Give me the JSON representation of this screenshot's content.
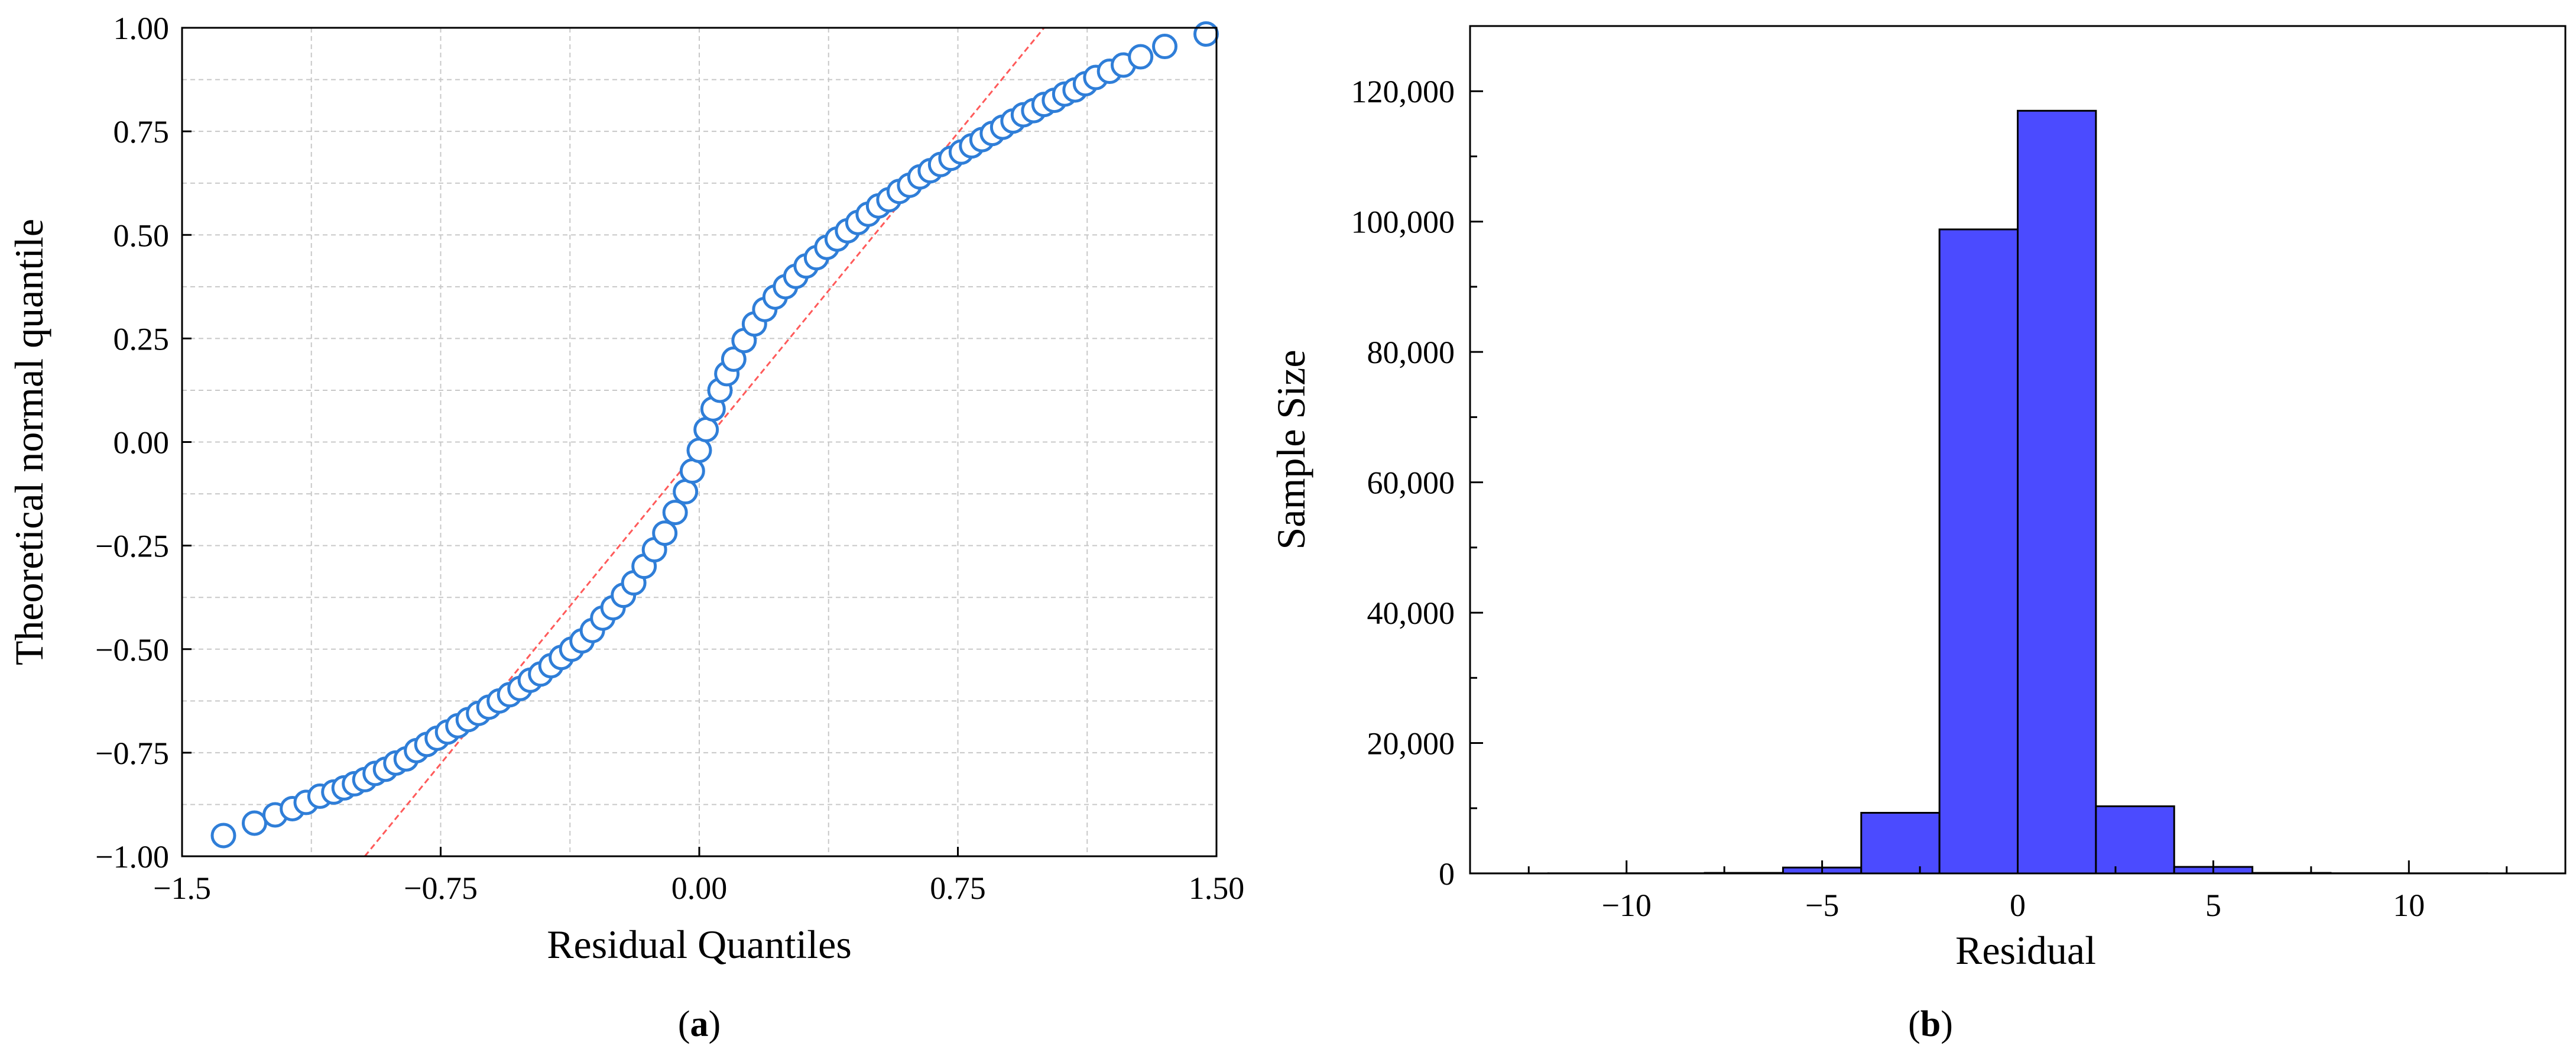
{
  "chart_data": [
    {
      "type": "scatter",
      "panel": "(a)",
      "panel_letter": "a",
      "xlabel": "Residual Quantiles",
      "ylabel": "Theoretical normal quantile",
      "xlim": [
        -1.5,
        1.5
      ],
      "ylim": [
        -1.0,
        1.0
      ],
      "xticks": [
        -1.5,
        -0.75,
        0.0,
        0.75,
        1.5
      ],
      "xtick_labels": [
        "−1.5",
        "−0.75",
        "0.00",
        "0.75",
        "1.50"
      ],
      "yticks": [
        -1.0,
        -0.75,
        -0.5,
        -0.25,
        0.0,
        0.25,
        0.5,
        0.75,
        1.0
      ],
      "ytick_labels": [
        "−1.00",
        "−0.75",
        "−0.50",
        "−0.25",
        "0.00",
        "0.25",
        "0.50",
        "0.75",
        "1.00"
      ],
      "grid": true,
      "marker_color": "#2f7ed8",
      "reference_line_color": "#ff5a5a",
      "reference_line": {
        "x": [
          -0.97,
          1.0
        ],
        "y": [
          -1.0,
          1.0
        ]
      },
      "points": [
        [
          -1.38,
          -0.95
        ],
        [
          -1.29,
          -0.92
        ],
        [
          -1.23,
          -0.9
        ],
        [
          -1.18,
          -0.885
        ],
        [
          -1.14,
          -0.87
        ],
        [
          -1.1,
          -0.855
        ],
        [
          -1.06,
          -0.845
        ],
        [
          -1.03,
          -0.835
        ],
        [
          -1.0,
          -0.825
        ],
        [
          -0.97,
          -0.815
        ],
        [
          -0.94,
          -0.8
        ],
        [
          -0.91,
          -0.79
        ],
        [
          -0.88,
          -0.775
        ],
        [
          -0.85,
          -0.765
        ],
        [
          -0.82,
          -0.745
        ],
        [
          -0.79,
          -0.73
        ],
        [
          -0.76,
          -0.715
        ],
        [
          -0.73,
          -0.7
        ],
        [
          -0.7,
          -0.685
        ],
        [
          -0.67,
          -0.67
        ],
        [
          -0.64,
          -0.655
        ],
        [
          -0.61,
          -0.64
        ],
        [
          -0.58,
          -0.625
        ],
        [
          -0.55,
          -0.61
        ],
        [
          -0.52,
          -0.595
        ],
        [
          -0.49,
          -0.575
        ],
        [
          -0.46,
          -0.56
        ],
        [
          -0.43,
          -0.54
        ],
        [
          -0.4,
          -0.52
        ],
        [
          -0.37,
          -0.5
        ],
        [
          -0.34,
          -0.48
        ],
        [
          -0.31,
          -0.455
        ],
        [
          -0.28,
          -0.425
        ],
        [
          -0.25,
          -0.4
        ],
        [
          -0.22,
          -0.37
        ],
        [
          -0.19,
          -0.34
        ],
        [
          -0.16,
          -0.3
        ],
        [
          -0.13,
          -0.26
        ],
        [
          -0.1,
          -0.22
        ],
        [
          -0.07,
          -0.17
        ],
        [
          -0.04,
          -0.12
        ],
        [
          -0.02,
          -0.07
        ],
        [
          0.0,
          -0.02
        ],
        [
          0.02,
          0.03
        ],
        [
          0.04,
          0.08
        ],
        [
          0.06,
          0.125
        ],
        [
          0.08,
          0.165
        ],
        [
          0.1,
          0.2
        ],
        [
          0.13,
          0.245
        ],
        [
          0.16,
          0.285
        ],
        [
          0.19,
          0.32
        ],
        [
          0.22,
          0.35
        ],
        [
          0.25,
          0.375
        ],
        [
          0.28,
          0.4
        ],
        [
          0.31,
          0.425
        ],
        [
          0.34,
          0.445
        ],
        [
          0.37,
          0.47
        ],
        [
          0.4,
          0.49
        ],
        [
          0.43,
          0.51
        ],
        [
          0.46,
          0.53
        ],
        [
          0.49,
          0.55
        ],
        [
          0.52,
          0.57
        ],
        [
          0.55,
          0.585
        ],
        [
          0.58,
          0.605
        ],
        [
          0.61,
          0.62
        ],
        [
          0.64,
          0.64
        ],
        [
          0.67,
          0.655
        ],
        [
          0.7,
          0.67
        ],
        [
          0.73,
          0.685
        ],
        [
          0.76,
          0.7
        ],
        [
          0.79,
          0.715
        ],
        [
          0.82,
          0.73
        ],
        [
          0.85,
          0.745
        ],
        [
          0.88,
          0.76
        ],
        [
          0.91,
          0.775
        ],
        [
          0.94,
          0.79
        ],
        [
          0.97,
          0.8
        ],
        [
          1.0,
          0.815
        ],
        [
          1.03,
          0.825
        ],
        [
          1.06,
          0.84
        ],
        [
          1.09,
          0.85
        ],
        [
          1.12,
          0.865
        ],
        [
          1.15,
          0.88
        ],
        [
          1.19,
          0.895
        ],
        [
          1.23,
          0.91
        ],
        [
          1.28,
          0.93
        ],
        [
          1.35,
          0.955
        ],
        [
          1.47,
          0.985
        ]
      ]
    },
    {
      "type": "bar",
      "panel": "(b)",
      "panel_letter": "b",
      "xlabel": "Residual",
      "ylabel": "Sample Size",
      "xlim": [
        -14,
        14
      ],
      "ylim": [
        0,
        130000
      ],
      "xticks": [
        -10,
        -5,
        0,
        5,
        10
      ],
      "xtick_labels": [
        "−10",
        "−5",
        "0",
        "5",
        "10"
      ],
      "xminor": [
        -12.5,
        -7.5,
        -2.5,
        2.5,
        7.5,
        12.5
      ],
      "yticks": [
        0,
        20000,
        40000,
        60000,
        80000,
        100000,
        120000
      ],
      "ytick_labels": [
        "0",
        "20,000",
        "40,000",
        "60,000",
        "80,000",
        "100,000",
        "120,000"
      ],
      "yminor": [
        10000,
        30000,
        50000,
        70000,
        90000,
        110000,
        130000
      ],
      "grid": false,
      "bar_color": "#4b4bff",
      "bins": [
        {
          "start": -14,
          "end": -12,
          "value": 10
        },
        {
          "start": -12,
          "end": -10,
          "value": 20
        },
        {
          "start": -10,
          "end": -8,
          "value": 30
        },
        {
          "start": -8,
          "end": -6,
          "value": 80
        },
        {
          "start": -6,
          "end": -4,
          "value": 900
        },
        {
          "start": -4,
          "end": -2,
          "value": 9300
        },
        {
          "start": -2,
          "end": 0,
          "value": 98800
        },
        {
          "start": 0,
          "end": 2,
          "value": 117000
        },
        {
          "start": 2,
          "end": 4,
          "value": 10300
        },
        {
          "start": 4,
          "end": 6,
          "value": 1000
        },
        {
          "start": 6,
          "end": 8,
          "value": 80
        },
        {
          "start": 8,
          "end": 10,
          "value": 30
        },
        {
          "start": 10,
          "end": 12,
          "value": 20
        },
        {
          "start": 12,
          "end": 14,
          "value": 10
        }
      ]
    }
  ]
}
